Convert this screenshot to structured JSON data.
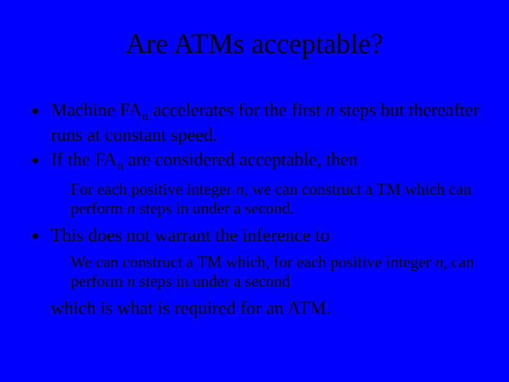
{
  "background_color": "#0000ff",
  "text_color": "#000000",
  "font_family": "Times New Roman",
  "title": "Are ATMs acceptable?",
  "title_fontsize": 40,
  "body_fontsize": 26,
  "indent_fontsize": 23,
  "b1_a": "Machine FA",
  "b1_sub": "n",
  "b1_b": " accelerates for the first ",
  "b1_ital": "n",
  "b1_c": " steps but thereafter runs at constant speed.",
  "b2_a": "If the FA",
  "b2_sub": "n",
  "b2_b": " are considered acceptable, then",
  "ind1_a": "For each positive integer ",
  "ind1_ital1": "n",
  "ind1_b": ", we can construct a TM which can perform ",
  "ind1_ital2": "n",
  "ind1_c": " steps in under a second.",
  "b3": "This does not warrant the inference to",
  "ind2_a": "We can construct a TM which, for each positive integer ",
  "ind2_ital1": "n",
  "ind2_b": ", can perform ",
  "ind2_ital2": "n",
  "ind2_c": " steps in under a second",
  "final": "which is what is required for an ATM."
}
